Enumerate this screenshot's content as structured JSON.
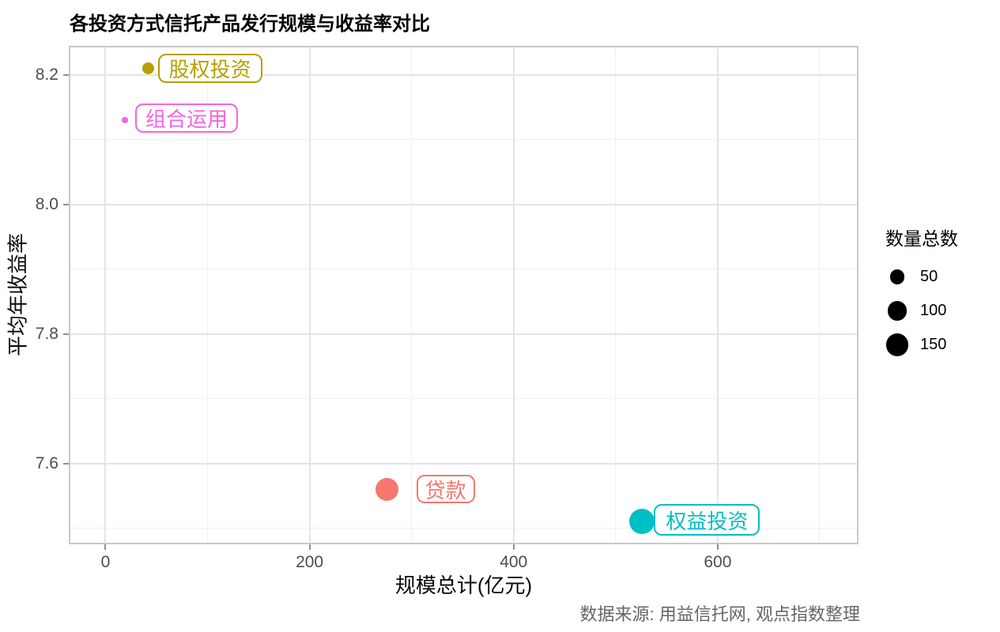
{
  "chart_data": {
    "type": "scatter",
    "title": "各投资方式信托产品发行规模与收益率对比",
    "xlabel": "规模总计(亿元)",
    "ylabel": "平均年收益率",
    "caption": "数据来源: 用益信托网, 观点指数整理",
    "xlim": [
      -36,
      738
    ],
    "ylim": [
      7.475,
      8.245
    ],
    "x_major_ticks": [
      0,
      200,
      400,
      600
    ],
    "x_minor_ticks": [
      100,
      300,
      500,
      700
    ],
    "y_major_ticks": [
      8.2,
      8.0,
      7.8,
      7.6
    ],
    "y_major_labels": [
      "8.2",
      "8.0",
      "7.8",
      "7.6"
    ],
    "y_minor_ticks": [
      8.1,
      7.9,
      7.7,
      7.5
    ],
    "grid": "major+minor, light gray on white panel",
    "legend": {
      "title": "数量总数",
      "position": "right",
      "values": [
        50,
        100,
        150
      ],
      "labels": [
        "50",
        "100",
        "150"
      ],
      "key_color": "#000000"
    },
    "points": [
      {
        "label": "股权投资",
        "x": 42,
        "y": 8.21,
        "count_estimate": 30,
        "color": "#B79F00",
        "radius_px": 7.5,
        "label_offset": [
          12,
          -19
        ],
        "label_box": [
          132,
          37
        ]
      },
      {
        "label": "组合运用",
        "x": 19,
        "y": 8.13,
        "count_estimate": 5,
        "color": "#F564E3",
        "radius_px": 4,
        "label_offset": [
          13,
          -21
        ],
        "label_box": [
          130,
          37
        ]
      },
      {
        "label": "贷款",
        "x": 276,
        "y": 7.56,
        "count_estimate": 145,
        "color": "#F8766D",
        "radius_px": 14.5,
        "label_offset": [
          37,
          -18
        ],
        "label_box": [
          74,
          36
        ]
      },
      {
        "label": "权益投资",
        "x": 526,
        "y": 7.51,
        "count_estimate": 180,
        "color": "#00BFC4",
        "radius_px": 16,
        "label_offset": [
          15,
          -22
        ],
        "label_box": [
          134,
          40
        ]
      }
    ]
  },
  "colors": {
    "grid_major": "#E4E4E4",
    "grid_minor": "#F0F0F0",
    "panel_border": "#C9C9C9",
    "tick": "#8F8F8F",
    "tick_label": "#4D4D4D",
    "caption": "#666666",
    "title": "#000000"
  }
}
